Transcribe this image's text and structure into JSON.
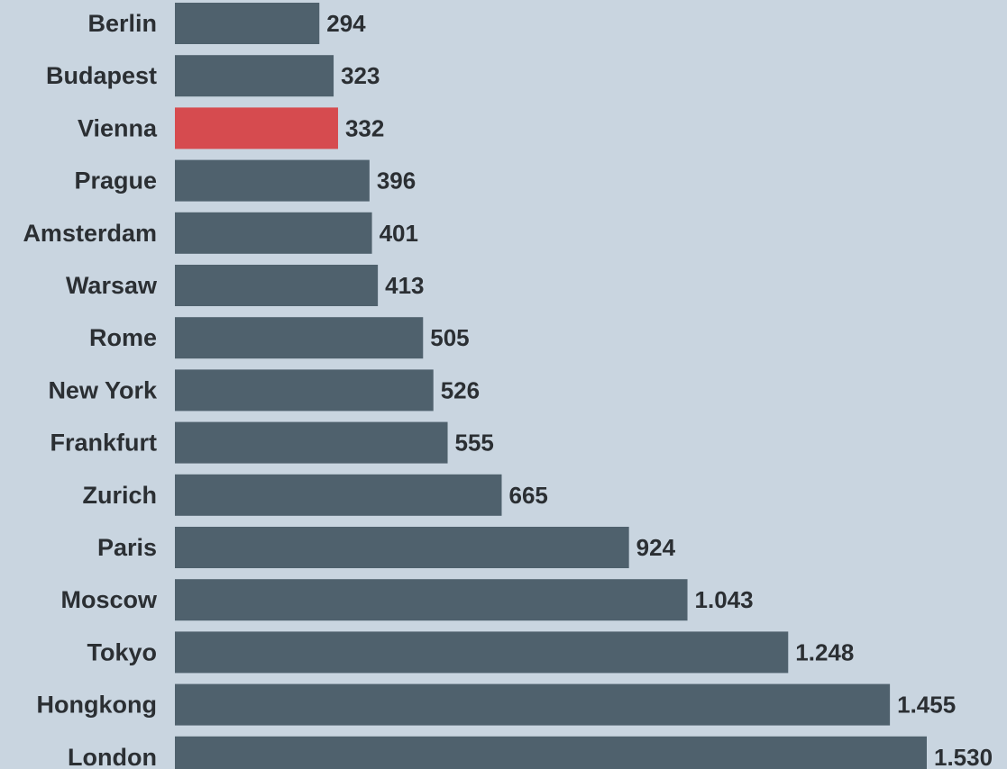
{
  "chart_data": {
    "type": "bar",
    "orientation": "horizontal",
    "categories": [
      "Berlin",
      "Budapest",
      "Vienna",
      "Prague",
      "Amsterdam",
      "Warsaw",
      "Rome",
      "New York",
      "Frankfurt",
      "Zurich",
      "Paris",
      "Moscow",
      "Tokyo",
      "Hongkong",
      "London"
    ],
    "values": [
      294,
      323,
      332,
      396,
      401,
      413,
      505,
      526,
      555,
      665,
      924,
      1043,
      1248,
      1455,
      1530
    ],
    "value_labels": [
      "294",
      "323",
      "332",
      "396",
      "401",
      "413",
      "505",
      "526",
      "555",
      "665",
      "924",
      "1.043",
      "1.248",
      "1.455",
      "1.530"
    ],
    "highlight_category": "Vienna",
    "title": "",
    "xlabel": "",
    "ylabel": "",
    "xlim": [
      0,
      1530
    ],
    "grid": false,
    "legend": "none"
  },
  "colors": {
    "background": "#c9d5e0",
    "bar": "#4f616d",
    "highlight": "#d64b4f",
    "text": "#2b2f33"
  }
}
